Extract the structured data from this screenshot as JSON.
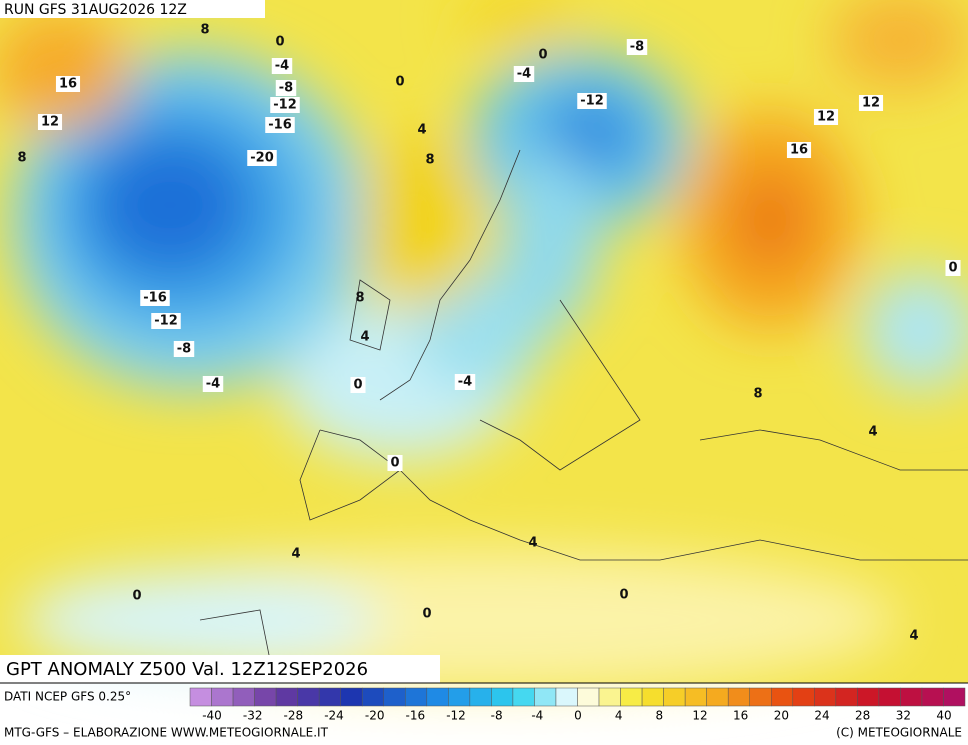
{
  "header": {
    "run": "RUN GFS 31AUG2026 12Z"
  },
  "map": {
    "title": "GPT ANOMALY Z500 Val. 12Z12SEP2026",
    "contour_labels": [
      8,
      0,
      -4,
      -8,
      -12,
      -16,
      -20,
      16,
      12,
      8,
      0,
      4,
      8,
      0,
      -4,
      -8,
      -12,
      12,
      12,
      16,
      0,
      -16,
      -12,
      -8,
      -4,
      8,
      4,
      0,
      -4,
      8,
      4,
      0,
      4,
      4,
      0,
      0,
      0,
      4
    ]
  },
  "legend": {
    "source": "DATI NCEP GFS 0.25°",
    "ticks": [
      -40,
      -32,
      -28,
      -24,
      -20,
      -16,
      -12,
      -8,
      -4,
      0,
      4,
      8,
      12,
      16,
      20,
      24,
      28,
      32,
      40
    ]
  },
  "footer": {
    "left": "MTG-GFS – ELABORAZIONE WWW.METEOGIORNALE.IT",
    "right": "(C) METEOGIORNALE"
  }
}
